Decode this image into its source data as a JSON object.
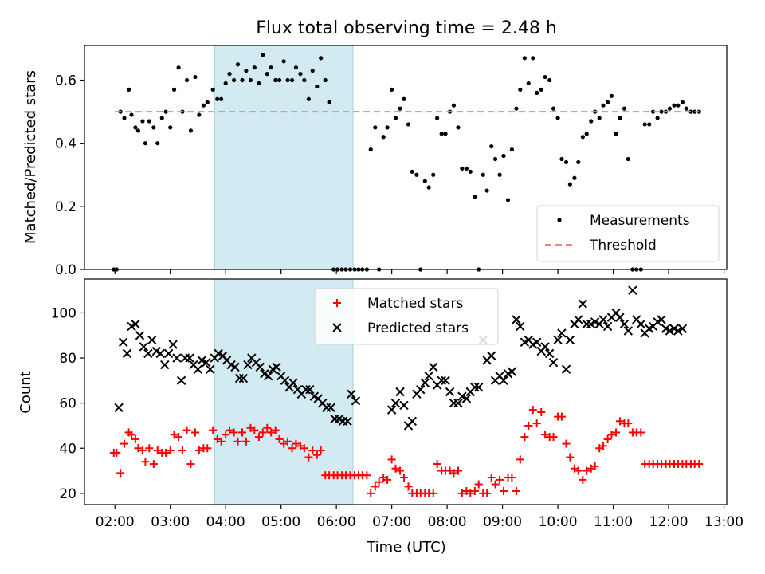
{
  "chart_data": [
    {
      "type": "scatter",
      "title": "Flux total observing time = 2.48 h",
      "xlabel": "",
      "ylabel": "Matched/Predicted stars",
      "xlim": [
        1.45,
        13.05
      ],
      "ylim": [
        0,
        0.71
      ],
      "yticks": [
        0,
        0.2,
        0.4,
        0.6
      ],
      "yticklabels": [
        "0.0",
        "0.2",
        "0.4",
        "0.6"
      ],
      "xticks": [
        2,
        3,
        4,
        5,
        6,
        7,
        8,
        9,
        10,
        11,
        12,
        13
      ],
      "xticklabels": [],
      "highlight_span": [
        3.8,
        6.3
      ],
      "highlight_color": "#add8e6",
      "legend": {
        "position": "lower-right",
        "entries": [
          "Measurements",
          "Threshold"
        ]
      },
      "series": [
        {
          "name": "Measurements",
          "marker": "dot",
          "color": "#000000",
          "x": [
            1.98,
            2.03,
            2.1,
            2.17,
            2.25,
            2.3,
            2.37,
            2.42,
            2.5,
            2.55,
            2.62,
            2.7,
            2.77,
            2.85,
            2.92,
            3.0,
            3.07,
            3.15,
            3.22,
            3.3,
            3.37,
            3.45,
            3.52,
            3.6,
            3.67,
            3.77,
            3.85,
            3.92,
            4.0,
            4.07,
            4.15,
            4.22,
            4.3,
            4.37,
            4.45,
            4.52,
            4.6,
            4.67,
            4.75,
            4.82,
            4.9,
            4.97,
            5.05,
            5.12,
            5.2,
            5.27,
            5.35,
            5.42,
            5.5,
            5.57,
            5.65,
            5.72,
            5.8,
            5.87,
            5.95,
            6.02,
            6.1,
            6.17,
            6.25,
            6.33,
            6.4,
            6.47,
            6.55,
            6.62,
            6.7,
            6.77,
            6.85,
            6.92,
            7.0,
            7.07,
            7.15,
            7.22,
            7.3,
            7.37,
            7.45,
            7.52,
            7.6,
            7.67,
            7.75,
            7.82,
            7.9,
            7.97,
            8.05,
            8.12,
            8.2,
            8.27,
            8.35,
            8.42,
            8.5,
            8.57,
            8.65,
            8.72,
            8.8,
            8.87,
            8.95,
            9.02,
            9.1,
            9.17,
            9.25,
            9.32,
            9.4,
            9.47,
            9.55,
            9.62,
            9.7,
            9.77,
            9.85,
            9.92,
            10.0,
            10.07,
            10.15,
            10.22,
            10.3,
            10.37,
            10.45,
            10.52,
            10.6,
            10.67,
            10.75,
            10.82,
            10.9,
            10.97,
            11.05,
            11.12,
            11.2,
            11.27,
            11.35,
            11.42,
            11.5,
            11.57,
            11.65,
            11.72,
            11.8,
            11.87,
            11.95,
            12.02,
            12.1,
            12.17,
            12.25,
            12.32,
            12.4,
            12.47,
            12.55
          ],
          "y": [
            0.0,
            0.0,
            0.5,
            0.48,
            0.57,
            0.49,
            0.45,
            0.44,
            0.47,
            0.4,
            0.47,
            0.45,
            0.4,
            0.48,
            0.5,
            0.45,
            0.57,
            0.64,
            0.5,
            0.6,
            0.44,
            0.61,
            0.49,
            0.52,
            0.53,
            0.57,
            0.54,
            0.54,
            0.59,
            0.62,
            0.6,
            0.65,
            0.6,
            0.63,
            0.6,
            0.64,
            0.59,
            0.68,
            0.62,
            0.64,
            0.6,
            0.6,
            0.66,
            0.6,
            0.6,
            0.64,
            0.62,
            0.6,
            0.54,
            0.63,
            0.58,
            0.67,
            0.6,
            0.53,
            0.0,
            0.0,
            0.0,
            0.0,
            0.0,
            0.0,
            0.0,
            0.0,
            0.0,
            0.38,
            0.45,
            0.0,
            0.42,
            0.45,
            0.57,
            0.48,
            0.51,
            0.54,
            0.46,
            0.31,
            0.3,
            0.0,
            0.28,
            0.26,
            0.3,
            0.48,
            0.43,
            0.43,
            0.5,
            0.52,
            0.45,
            0.32,
            0.32,
            0.31,
            0.23,
            0.0,
            0.3,
            0.25,
            0.39,
            0.35,
            0.3,
            0.36,
            0.22,
            0.38,
            0.51,
            0.57,
            0.67,
            0.59,
            0.67,
            0.56,
            0.57,
            0.61,
            0.6,
            0.51,
            0.48,
            0.35,
            0.34,
            0.27,
            0.29,
            0.34,
            0.42,
            0.43,
            0.47,
            0.5,
            0.48,
            0.52,
            0.53,
            0.55,
            0.43,
            0.48,
            0.51,
            0.35,
            0.0,
            0.0,
            0.0,
            0.46,
            0.46,
            0.5,
            0.48,
            0.5,
            0.5,
            0.51,
            0.52,
            0.52,
            0.53,
            0.51,
            0.5,
            0.5,
            0.5
          ]
        },
        {
          "name": "Threshold",
          "type": "line",
          "style": "dashed",
          "color": "#ff7f7f",
          "x": [
            2.0,
            12.55
          ],
          "y": [
            0.5,
            0.5
          ]
        }
      ]
    },
    {
      "type": "scatter",
      "title": "",
      "xlabel": "Time (UTC)",
      "ylabel": "Count",
      "xlim": [
        1.45,
        13.05
      ],
      "ylim": [
        15,
        115
      ],
      "yticks": [
        20,
        40,
        60,
        80,
        100
      ],
      "yticklabels": [
        "20",
        "40",
        "60",
        "80",
        "100"
      ],
      "xticks": [
        2,
        3,
        4,
        5,
        6,
        7,
        8,
        9,
        10,
        11,
        12,
        13
      ],
      "xticklabels": [
        "02:00",
        "03:00",
        "04:00",
        "05:00",
        "06:00",
        "07:00",
        "08:00",
        "09:00",
        "10:00",
        "11:00",
        "12:00",
        "13:00"
      ],
      "highlight_span": [
        3.8,
        6.3
      ],
      "highlight_color": "#add8e6",
      "legend": {
        "position": "top-center",
        "entries": [
          "Matched stars",
          "Predicted stars"
        ]
      },
      "series": [
        {
          "name": "Matched stars",
          "marker": "plus",
          "color": "#ff0000",
          "x": [
            1.98,
            2.03,
            2.1,
            2.17,
            2.25,
            2.3,
            2.37,
            2.42,
            2.5,
            2.55,
            2.62,
            2.7,
            2.77,
            2.85,
            2.92,
            3.0,
            3.07,
            3.15,
            3.22,
            3.3,
            3.37,
            3.45,
            3.52,
            3.6,
            3.67,
            3.77,
            3.85,
            3.92,
            4.0,
            4.07,
            4.15,
            4.22,
            4.3,
            4.37,
            4.45,
            4.52,
            4.6,
            4.67,
            4.75,
            4.82,
            4.9,
            4.97,
            5.05,
            5.12,
            5.2,
            5.27,
            5.35,
            5.42,
            5.5,
            5.57,
            5.65,
            5.72,
            5.8,
            5.87,
            5.95,
            6.02,
            6.1,
            6.17,
            6.25,
            6.33,
            6.4,
            6.47,
            6.55,
            6.62,
            6.7,
            6.77,
            6.85,
            6.92,
            7.0,
            7.07,
            7.15,
            7.22,
            7.3,
            7.37,
            7.45,
            7.52,
            7.6,
            7.67,
            7.75,
            7.82,
            7.9,
            7.97,
            8.05,
            8.12,
            8.2,
            8.27,
            8.35,
            8.42,
            8.5,
            8.57,
            8.65,
            8.72,
            8.8,
            8.87,
            8.95,
            9.02,
            9.1,
            9.17,
            9.25,
            9.32,
            9.4,
            9.47,
            9.55,
            9.62,
            9.7,
            9.77,
            9.85,
            9.92,
            10.0,
            10.07,
            10.15,
            10.22,
            10.3,
            10.37,
            10.45,
            10.52,
            10.6,
            10.67,
            10.75,
            10.82,
            10.9,
            10.97,
            11.05,
            11.12,
            11.2,
            11.27,
            11.35,
            11.42,
            11.5,
            11.57,
            11.65,
            11.72,
            11.8,
            11.87,
            11.95,
            12.02,
            12.1,
            12.17,
            12.25,
            12.32,
            12.4,
            12.47,
            12.55
          ],
          "y": [
            38,
            38,
            29,
            42,
            47,
            46,
            44,
            40,
            39,
            34,
            40,
            33,
            39,
            38,
            38,
            39,
            46,
            45,
            39,
            48,
            33,
            47,
            39,
            40,
            40,
            48,
            44,
            43,
            46,
            48,
            47,
            43,
            47,
            43,
            49,
            48,
            45,
            47,
            49,
            47,
            48,
            44,
            42,
            43,
            40,
            42,
            41,
            40,
            36,
            39,
            37,
            39,
            28,
            28,
            28,
            28,
            28,
            28,
            28,
            28,
            28,
            28,
            28,
            20,
            23,
            25,
            27,
            26,
            35,
            31,
            30,
            27,
            23,
            20,
            20,
            20,
            20,
            20,
            20,
            33,
            30,
            30,
            30,
            29,
            30,
            20,
            21,
            20,
            21,
            24,
            20,
            20,
            27,
            24,
            26,
            21,
            27,
            27,
            21,
            35,
            45,
            50,
            57,
            51,
            56,
            46,
            45,
            45,
            54,
            54,
            42,
            36,
            31,
            30,
            26,
            30,
            31,
            32,
            40,
            41,
            44,
            46,
            47,
            52,
            51,
            51,
            47,
            47,
            47,
            33,
            33,
            33,
            33,
            33,
            33,
            33,
            33,
            33,
            33,
            33,
            33,
            33,
            33
          ]
        },
        {
          "name": "Predicted stars",
          "marker": "x",
          "color": "#000000",
          "x": [
            2.07,
            2.15,
            2.22,
            2.3,
            2.37,
            2.45,
            2.52,
            2.6,
            2.67,
            2.75,
            2.82,
            2.9,
            2.97,
            3.05,
            3.12,
            3.2,
            3.27,
            3.35,
            3.42,
            3.5,
            3.57,
            3.65,
            3.72,
            3.8,
            3.87,
            3.95,
            4.02,
            4.1,
            4.17,
            4.25,
            4.32,
            4.4,
            4.47,
            4.55,
            4.62,
            4.7,
            4.77,
            4.85,
            4.92,
            5.0,
            5.07,
            5.15,
            5.22,
            5.3,
            5.37,
            5.45,
            5.52,
            5.6,
            5.67,
            5.75,
            5.82,
            5.9,
            5.97,
            6.05,
            6.12,
            6.2,
            6.27,
            6.35,
            7.0,
            7.07,
            7.15,
            7.22,
            7.3,
            7.37,
            7.45,
            7.52,
            7.6,
            7.67,
            7.75,
            7.82,
            7.9,
            7.97,
            8.05,
            8.12,
            8.2,
            8.27,
            8.35,
            8.42,
            8.5,
            8.57,
            8.65,
            8.72,
            8.8,
            8.87,
            8.95,
            9.02,
            9.1,
            9.17,
            9.25,
            9.32,
            9.4,
            9.47,
            9.55,
            9.62,
            9.7,
            9.77,
            9.85,
            9.92,
            10.0,
            10.07,
            10.15,
            10.22,
            10.3,
            10.37,
            10.45,
            10.52,
            10.6,
            10.67,
            10.75,
            10.82,
            10.9,
            10.97,
            11.05,
            11.12,
            11.2,
            11.27,
            11.35,
            11.42,
            11.5,
            11.57,
            11.65,
            11.72,
            11.8,
            11.87,
            11.95,
            12.02,
            12.1,
            12.17,
            12.25
          ],
          "y": [
            58,
            87,
            82,
            94,
            95,
            90,
            85,
            82,
            88,
            83,
            82,
            77,
            82,
            86,
            80,
            70,
            80,
            80,
            77,
            75,
            79,
            78,
            75,
            80,
            82,
            81,
            79,
            77,
            76,
            71,
            71,
            77,
            80,
            78,
            76,
            73,
            72,
            75,
            76,
            72,
            70,
            67,
            69,
            66,
            64,
            66,
            66,
            63,
            62,
            60,
            58,
            58,
            53,
            53,
            52,
            52,
            64,
            61,
            57,
            60,
            65,
            59,
            50,
            52,
            64,
            66,
            69,
            72,
            76,
            68,
            70,
            70,
            65,
            60,
            60,
            63,
            62,
            65,
            67,
            67,
            88,
            79,
            81,
            70,
            72,
            70,
            73,
            74,
            97,
            94,
            87,
            88,
            86,
            87,
            83,
            85,
            82,
            78,
            88,
            91,
            75,
            88,
            95,
            97,
            104,
            95,
            95,
            96,
            95,
            97,
            94,
            98,
            100,
            98,
            95,
            92,
            110,
            97,
            95,
            91,
            93,
            94,
            96,
            97,
            93,
            92,
            93,
            92,
            93
          ]
        }
      ]
    }
  ]
}
